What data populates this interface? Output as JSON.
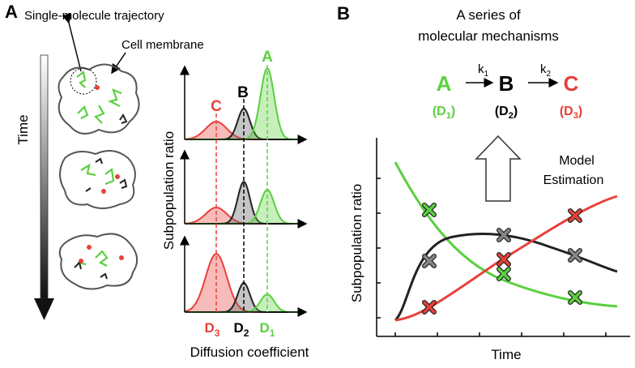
{
  "panel_a": {
    "label": "A",
    "trajectory_label": "Single-molecule trajectory",
    "membrane_label": "Cell membrane",
    "time_label": "Time",
    "y_label": "Subpopulation ratio",
    "x_label": "Diffusion coefficient",
    "peak_labels": [
      "C",
      "B",
      "A"
    ],
    "d_labels": [
      {
        "main": "D",
        "sub": "3"
      },
      {
        "main": "D",
        "sub": "2"
      },
      {
        "main": "D",
        "sub": "1"
      }
    ]
  },
  "panel_b": {
    "label": "B",
    "title_lines": [
      "A series of",
      "molecular mechanisms"
    ],
    "species": [
      {
        "name": "A",
        "main": "(D",
        "sub": "1",
        "close": ")"
      },
      {
        "name": "B",
        "main": "(D",
        "sub": "2",
        "close": ")"
      },
      {
        "name": "C",
        "main": "(D",
        "sub": "3",
        "close": ")"
      }
    ],
    "rates": [
      {
        "main": "k",
        "sub": "1"
      },
      {
        "main": "k",
        "sub": "2"
      }
    ],
    "estimation_lines": [
      "Model",
      "Estimation"
    ],
    "y_label": "Subpopulation ratio",
    "x_label": "Time"
  }
}
